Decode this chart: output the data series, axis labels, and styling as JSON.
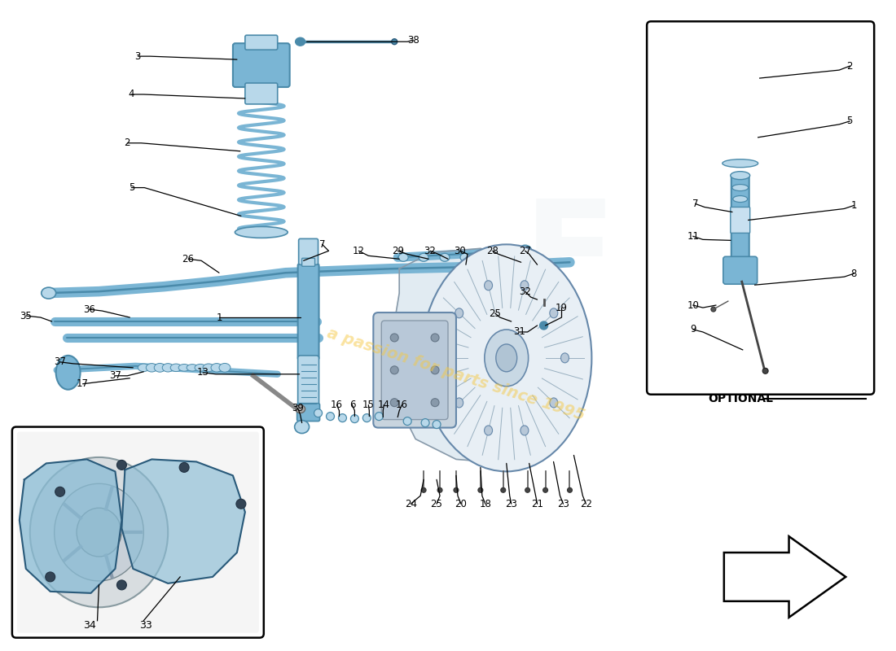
{
  "background_color": "#ffffff",
  "fig_width": 11.0,
  "fig_height": 8.0,
  "watermark_text": "a passion for parts since 1995",
  "optional_label": "OPTIONAL",
  "label_fontsize": 8.5,
  "component_color_main": "#7ab5d4",
  "component_color_light": "#b8d8ea",
  "component_color_dark": "#4a8aaa",
  "spring_color": "#7ab5d4",
  "line_color": "#000000",
  "arrow_fill": "#ffffff"
}
